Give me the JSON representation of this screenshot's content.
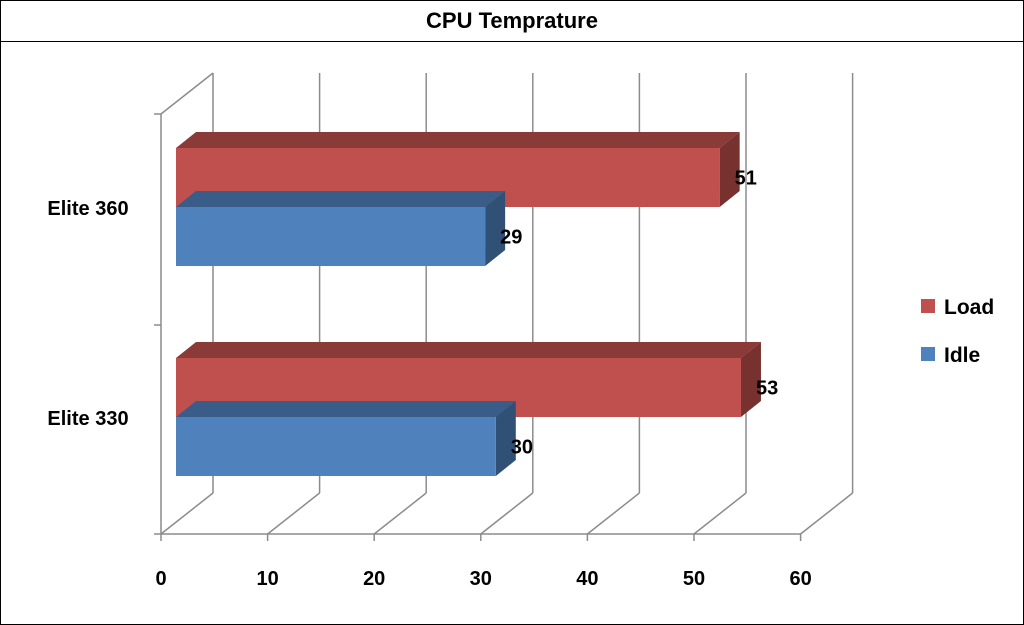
{
  "chart_data": {
    "type": "bar",
    "orientation": "horizontal",
    "style": "3d",
    "title": "CPU Temprature",
    "categories": [
      "Elite 330",
      "Elite 360"
    ],
    "series": [
      {
        "name": "Idle",
        "values": [
          30,
          29
        ],
        "color": "#4F81BD"
      },
      {
        "name": "Load",
        "values": [
          53,
          51
        ],
        "color": "#C0504D"
      }
    ],
    "xlim": [
      0,
      60
    ],
    "xticks": [
      0,
      10,
      20,
      30,
      40,
      50,
      60
    ],
    "grid": true,
    "legend_position": "right"
  }
}
